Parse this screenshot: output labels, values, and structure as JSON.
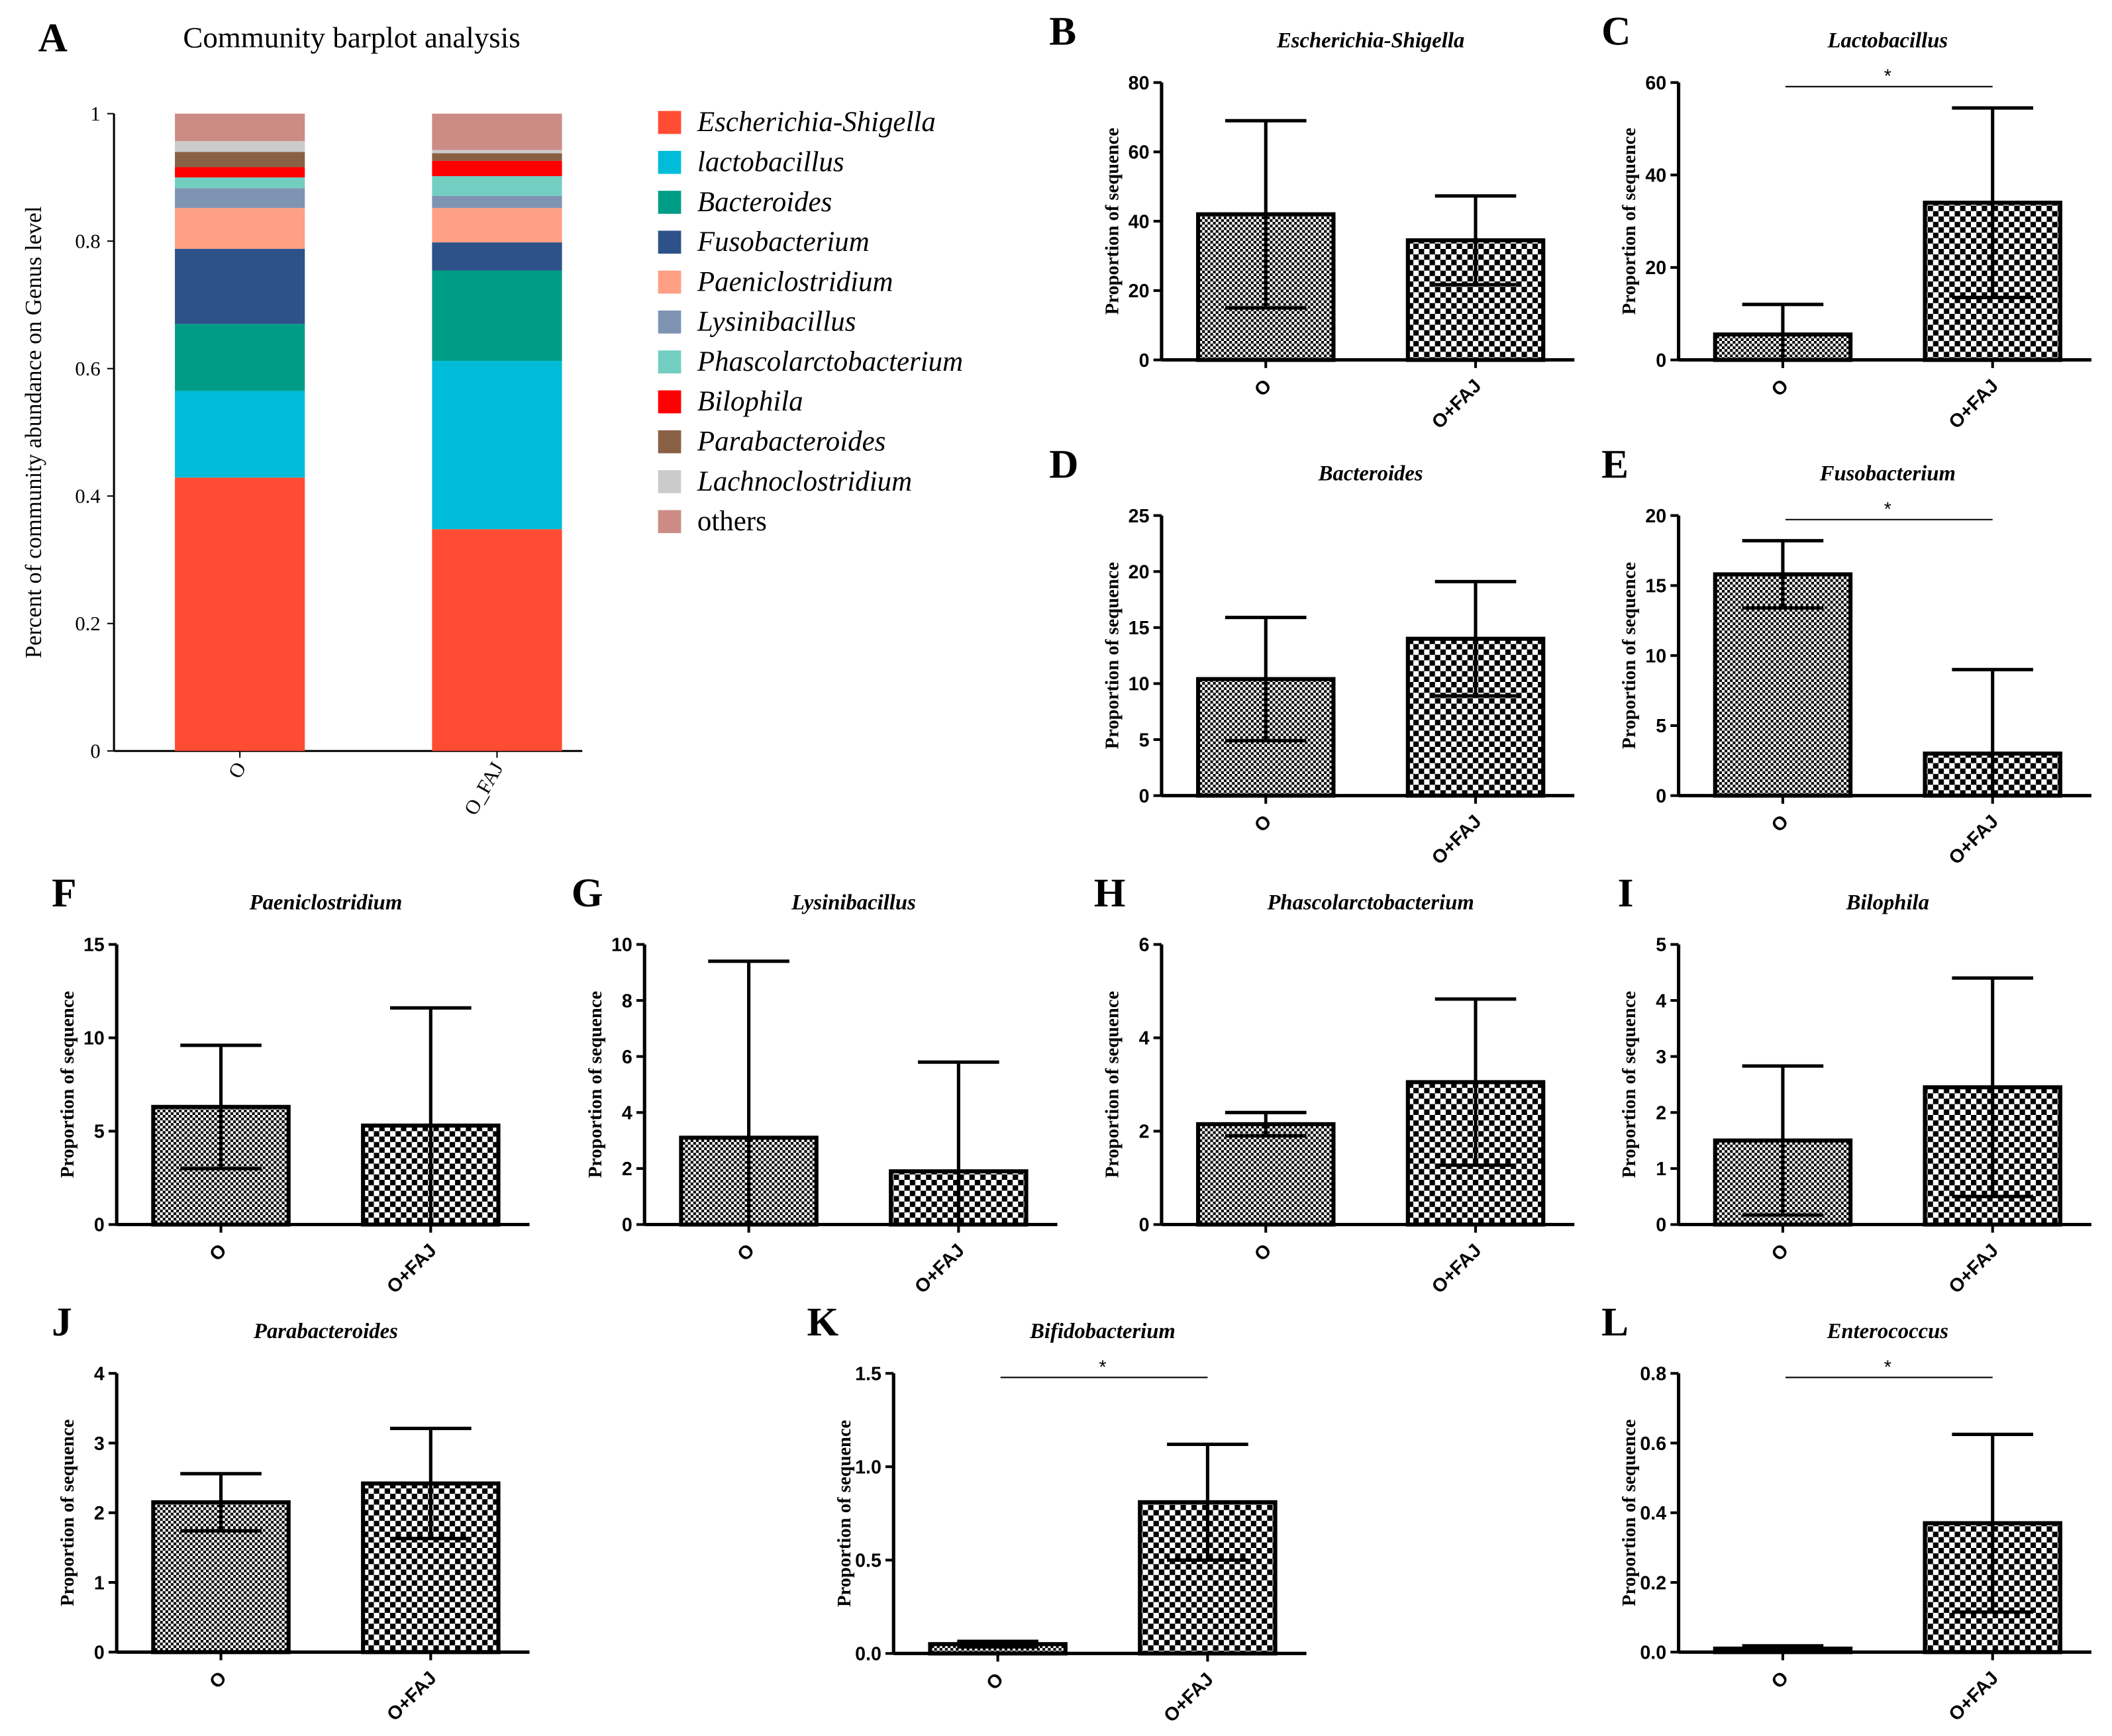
{
  "chart_data": [
    {
      "panel": "A",
      "type": "bar",
      "stacked": true,
      "title": "Community barplot analysis",
      "ylabel": "Percent of community abundance on Genus level",
      "xlabel": "",
      "ylim": [
        0,
        1
      ],
      "yticks": [
        "0",
        "0.2",
        "0.4",
        "0.6",
        "0.8",
        "1"
      ],
      "categories": [
        "O",
        "O_FAJ"
      ],
      "legend_position": "right",
      "series": [
        {
          "name": "Escherichia-Shigella",
          "color": "#FF4C33",
          "italic": true,
          "values": [
            0.429,
            0.348
          ]
        },
        {
          "name": "lactobacillus",
          "color": "#00BCDA",
          "italic": true,
          "values": [
            0.136,
            0.264
          ]
        },
        {
          "name": "Bacteroides",
          "color": "#009D86",
          "italic": true,
          "values": [
            0.105,
            0.142
          ]
        },
        {
          "name": "Fusobacterium",
          "color": "#2C5289",
          "italic": true,
          "values": [
            0.118,
            0.044
          ]
        },
        {
          "name": "Paeniclostridium",
          "color": "#FF9F83",
          "italic": true,
          "values": [
            0.064,
            0.054
          ]
        },
        {
          "name": "Lysinibacillus",
          "color": "#7F93B2",
          "italic": true,
          "values": [
            0.031,
            0.019
          ]
        },
        {
          "name": "Phascolarctobacterium",
          "color": "#73CEC2",
          "italic": true,
          "values": [
            0.017,
            0.031
          ]
        },
        {
          "name": "Bilophila",
          "color": "#FF0000",
          "italic": true,
          "values": [
            0.016,
            0.024
          ]
        },
        {
          "name": "Parabacteroides",
          "color": "#8A6045",
          "italic": true,
          "values": [
            0.024,
            0.012
          ]
        },
        {
          "name": "Lachnoclostridium",
          "color": "#CBCBCB",
          "italic": true,
          "values": [
            0.017,
            0.005
          ]
        },
        {
          "name": "others",
          "color": "#CC8C85",
          "italic": false,
          "values": [
            0.043,
            0.057
          ]
        }
      ]
    },
    {
      "panel": "B",
      "type": "bar",
      "title": "Escherichia-Shigella",
      "ylabel": "Proportion of sequence",
      "categories": [
        "O",
        "O+FAJ"
      ],
      "values": [
        42,
        34.5
      ],
      "error_sd": [
        27,
        12.8
      ],
      "ylim": [
        0,
        80
      ],
      "yticks": [
        "0",
        "20",
        "40",
        "60",
        "80"
      ],
      "significance": ""
    },
    {
      "panel": "C",
      "type": "bar",
      "title": "Lactobacillus",
      "ylabel": "Proportion of sequence",
      "categories": [
        "O",
        "O+FAJ"
      ],
      "values": [
        5.5,
        34
      ],
      "error_sd": [
        6.5,
        20.5
      ],
      "ylim": [
        0,
        60
      ],
      "yticks": [
        "0",
        "20",
        "40",
        "60"
      ],
      "significance": "*"
    },
    {
      "panel": "D",
      "type": "bar",
      "title": "Bacteroides",
      "ylabel": "Proportion of sequence",
      "categories": [
        "O",
        "O+FAJ"
      ],
      "values": [
        10.4,
        14
      ],
      "error_sd": [
        5.5,
        5.1
      ],
      "ylim": [
        0,
        25
      ],
      "yticks": [
        "0",
        "5",
        "10",
        "15",
        "20",
        "25"
      ],
      "significance": ""
    },
    {
      "panel": "E",
      "type": "bar",
      "title": "Fusobacterium",
      "ylabel": "Proportion of sequence",
      "categories": [
        "O",
        "O+FAJ"
      ],
      "values": [
        15.8,
        3
      ],
      "error_sd": [
        2.4,
        6
      ],
      "ylim": [
        0,
        20
      ],
      "yticks": [
        "0",
        "5",
        "10",
        "15",
        "20"
      ],
      "significance": "*"
    },
    {
      "panel": "F",
      "type": "bar",
      "title": "Paeniclostridium",
      "ylabel": "Proportion of sequence",
      "categories": [
        "O",
        "O+FAJ"
      ],
      "values": [
        6.3,
        5.3
      ],
      "error_sd": [
        3.3,
        6.3
      ],
      "ylim": [
        0,
        15
      ],
      "yticks": [
        "0",
        "5",
        "10",
        "15"
      ],
      "significance": ""
    },
    {
      "panel": "G",
      "type": "bar",
      "title": "Lysinibacillus",
      "ylabel": "Proportion of sequence",
      "categories": [
        "O",
        "O+FAJ"
      ],
      "values": [
        3.1,
        1.9
      ],
      "error_sd": [
        6.3,
        3.9
      ],
      "ylim": [
        0,
        10
      ],
      "yticks": [
        "0",
        "2",
        "4",
        "6",
        "8",
        "10"
      ],
      "significance": ""
    },
    {
      "panel": "H",
      "type": "bar",
      "title": "Phascolarctobacterium",
      "ylabel": "Proportion of sequence",
      "categories": [
        "O",
        "O+FAJ"
      ],
      "values": [
        2.15,
        3.05
      ],
      "error_sd": [
        0.25,
        1.78
      ],
      "ylim": [
        0,
        6
      ],
      "yticks": [
        "0",
        "2",
        "4",
        "6"
      ],
      "significance": ""
    },
    {
      "panel": "I",
      "type": "bar",
      "title": "Bilophila",
      "ylabel": "Proportion of sequence",
      "categories": [
        "O",
        "O+FAJ"
      ],
      "values": [
        1.5,
        2.45
      ],
      "error_sd": [
        1.33,
        1.95
      ],
      "ylim": [
        0,
        5
      ],
      "yticks": [
        "0",
        "1",
        "2",
        "3",
        "4",
        "5"
      ],
      "significance": ""
    },
    {
      "panel": "J",
      "type": "bar",
      "title": "Parabacteroides",
      "ylabel": "Proportion of sequence",
      "categories": [
        "O",
        "O+FAJ"
      ],
      "values": [
        2.15,
        2.42
      ],
      "error_sd": [
        0.41,
        0.79
      ],
      "ylim": [
        0,
        4
      ],
      "yticks": [
        "0",
        "1",
        "2",
        "3",
        "4"
      ],
      "significance": ""
    },
    {
      "panel": "K",
      "type": "bar",
      "title": "Bifidobacterium",
      "ylabel": "Proportion of sequence",
      "categories": [
        "O",
        "O+FAJ"
      ],
      "values": [
        0.05,
        0.81
      ],
      "error_sd": [
        0.015,
        0.31
      ],
      "ylim": [
        0,
        1.5
      ],
      "yticks": [
        "0.0",
        "0.5",
        "1.0",
        "1.5"
      ],
      "significance": "*"
    },
    {
      "panel": "L",
      "type": "bar",
      "title": "Enterococcus",
      "ylabel": "Proportion of sequence",
      "categories": [
        "O",
        "O+FAJ"
      ],
      "values": [
        0.01,
        0.37
      ],
      "error_sd": [
        0.008,
        0.255
      ],
      "ylim": [
        0,
        0.8
      ],
      "yticks": [
        "0.0",
        "0.2",
        "0.4",
        "0.6",
        "0.8"
      ],
      "significance": "*"
    }
  ]
}
